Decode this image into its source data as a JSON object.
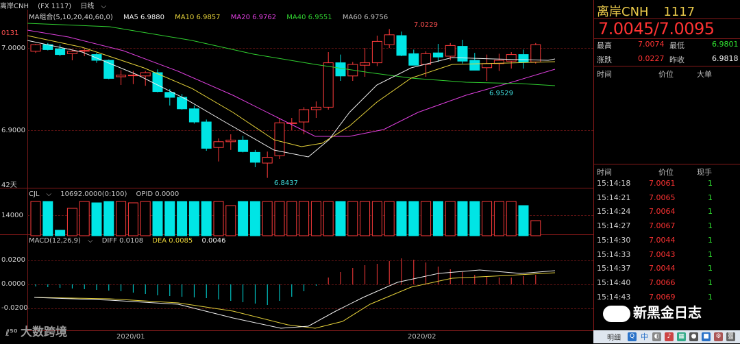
{
  "title": {
    "symbol": "离岸CNH",
    "code": "(FX 1117)",
    "period": "日线"
  },
  "ma": {
    "group": "MA组合(5,10,20,40,60,0)",
    "ma5": "MA5 6.9880",
    "ma10": "MA10 6.9857",
    "ma20": "MA20 6.9762",
    "ma40": "MA40 6.9551",
    "ma60": "MA60 6.9756",
    "colors": {
      "ma5": "#f0f0f0",
      "ma10": "#e6d23a",
      "ma20": "#e040e0",
      "ma40": "#30d030",
      "ma60": "#bbbbbb"
    }
  },
  "price_axis": {
    "top_partial": "0131",
    "l1": "7.0000",
    "l2": "6.9000",
    "bottom": "42天"
  },
  "annotations": {
    "high": "7.0229",
    "low": "6.8437",
    "ma_low": "6.9529"
  },
  "volume": {
    "label": "CJL",
    "value": "10692.0000(0:100)",
    "opid": "OPID 0.0000",
    "tick": "14000"
  },
  "macd": {
    "label": "MACD(12,26,9)",
    "diff": "DIFF 0.0108",
    "dea": "DEA 0.0085",
    "macd": "0.0046",
    "ticks": [
      "0.0200",
      "0.0000",
      "-0.0200"
    ]
  },
  "dates": [
    "2020/01",
    "2020/02"
  ],
  "quote": {
    "name": "离岸CNH",
    "code": "1117",
    "price": "7.0045/7.0095",
    "high_label": "最高",
    "high": "7.0074",
    "low_label": "最低",
    "low": "6.9801",
    "chg_label": "涨跌",
    "chg": "0.0227",
    "prev_label": "昨收",
    "prev": "6.9818"
  },
  "big_orders_header": {
    "time": "时间",
    "price": "价位",
    "size": "大单"
  },
  "trades_header": {
    "time": "时间",
    "price": "价位",
    "size": "现手"
  },
  "trades": [
    {
      "time": "15:14:18",
      "price": "7.0061",
      "size": "1"
    },
    {
      "time": "15:14:21",
      "price": "7.0065",
      "size": "1"
    },
    {
      "time": "15:14:24",
      "price": "7.0064",
      "size": "1"
    },
    {
      "time": "15:14:27",
      "price": "7.0067",
      "size": "1"
    },
    {
      "time": "15:14:30",
      "price": "7.0044",
      "size": "1"
    },
    {
      "time": "15:14:33",
      "price": "7.0043",
      "size": "1"
    },
    {
      "time": "15:14:37",
      "price": "7.0044",
      "size": "1"
    },
    {
      "time": "15:14:40",
      "price": "7.0066",
      "size": "1"
    },
    {
      "time": "15:14:43",
      "price": "7.0069",
      "size": "1"
    }
  ],
  "watermark": "大数跨境",
  "brand": "新黑金日志",
  "taskbar_tail": "明细"
}
